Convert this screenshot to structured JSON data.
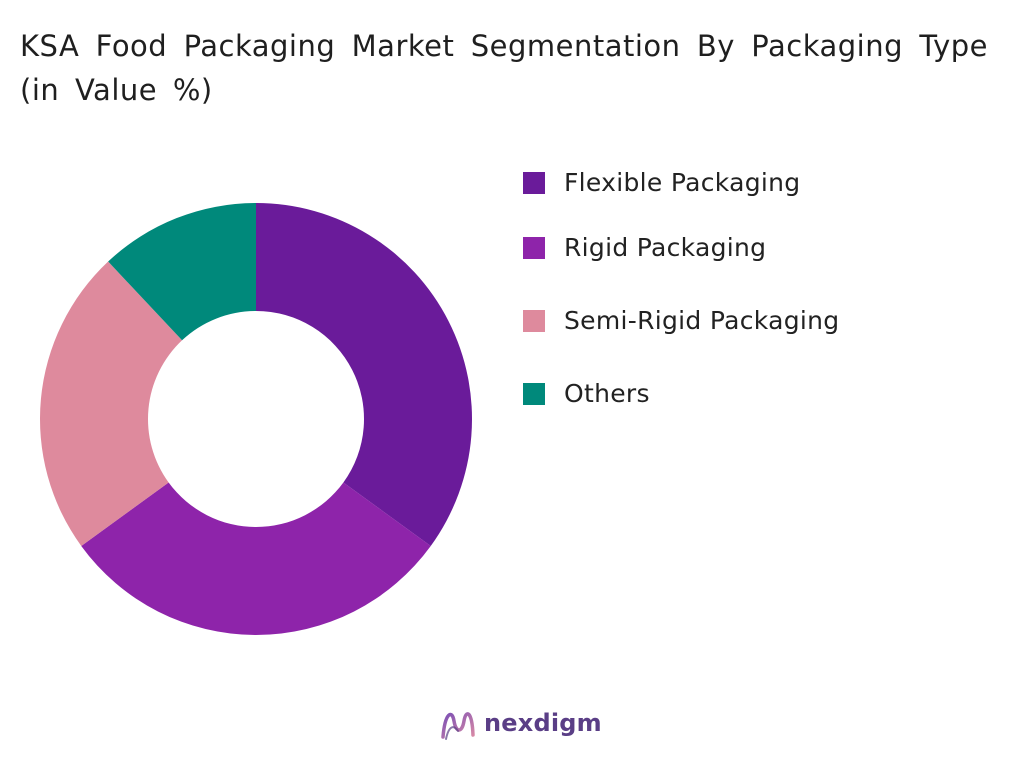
{
  "header": {
    "title": "KSA Food Packaging Market Segmentation By Packaging Type (in Value %)"
  },
  "chart_data": {
    "type": "pie",
    "variant": "donut",
    "categories": [
      "Flexible Packaging",
      "Rigid Packaging",
      "Semi-Rigid Packaging",
      "Others"
    ],
    "values": [
      35,
      30,
      23,
      12
    ],
    "colors": [
      "#6a1b9a",
      "#8e24aa",
      "#de8a9d",
      "#00897b"
    ],
    "legend_position": "right"
  },
  "brand": {
    "name": "nexdigm",
    "logo_icon": "nexdigm-wave-icon",
    "color": "#5a3e86"
  }
}
